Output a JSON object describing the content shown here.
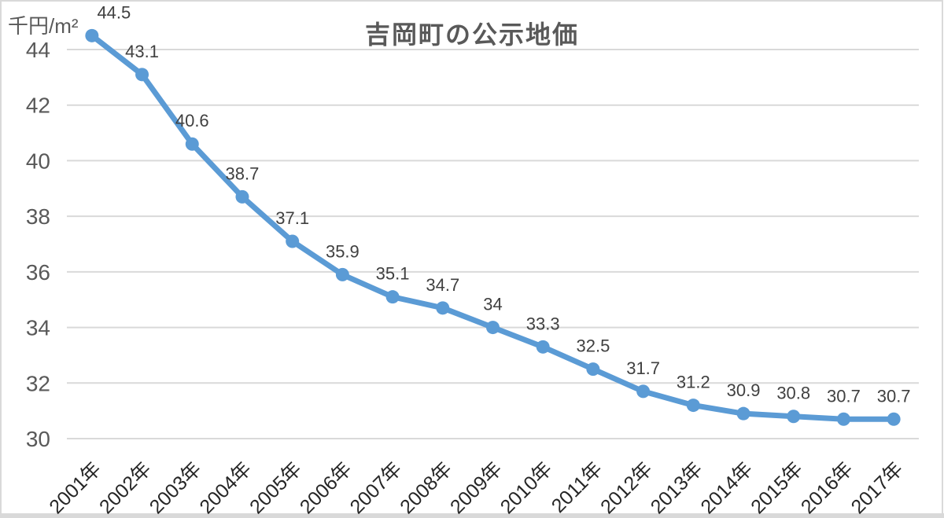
{
  "chart_data": {
    "type": "line",
    "title": "吉岡町の公示地価",
    "ylabel": "千円/m²",
    "xlabel": "",
    "categories": [
      "2001年",
      "2002年",
      "2003年",
      "2004年",
      "2005年",
      "2006年",
      "2007年",
      "2008年",
      "2009年",
      "2010年",
      "2011年",
      "2012年",
      "2013年",
      "2014年",
      "2015年",
      "2016年",
      "2017年"
    ],
    "values": [
      44.5,
      43.1,
      40.6,
      38.7,
      37.1,
      35.9,
      35.1,
      34.7,
      34,
      33.3,
      32.5,
      31.7,
      31.2,
      30.9,
      30.8,
      30.7,
      30.7
    ],
    "data_labels": [
      "44.5",
      "43.1",
      "40.6",
      "38.7",
      "37.1",
      "35.9",
      "35.1",
      "34.7",
      "34",
      "33.3",
      "32.5",
      "31.7",
      "31.2",
      "30.9",
      "30.8",
      "30.7",
      "30.7"
    ],
    "ylim": [
      30,
      45
    ],
    "yticks": [
      30,
      32,
      34,
      36,
      38,
      40,
      42,
      44
    ],
    "grid": true,
    "legend": "none",
    "marker": "circle",
    "style": {
      "line_color": "#5B9BD5",
      "marker_color": "#5B9BD5",
      "grid_color": "#D9D9D9",
      "frame_color": "#D9D9D9",
      "background": "#FFFFFF",
      "data_label_color": "#404040",
      "ytick_color": "#595959",
      "xtick_color": "#262626",
      "title_color": "#595959",
      "unit_label_color": "#595959"
    }
  }
}
